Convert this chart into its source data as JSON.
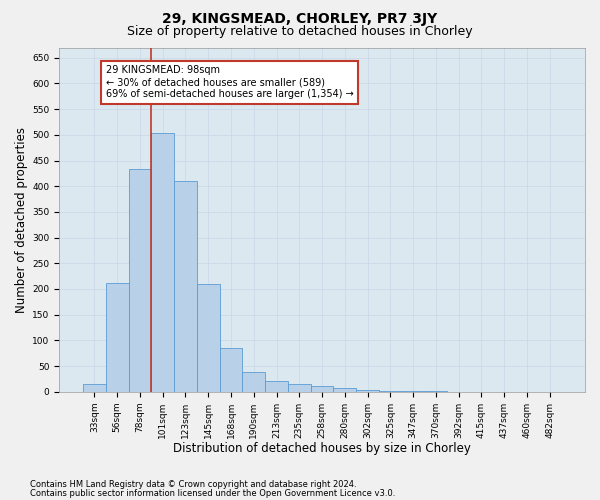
{
  "title": "29, KINGSMEAD, CHORLEY, PR7 3JY",
  "subtitle": "Size of property relative to detached houses in Chorley",
  "xlabel": "Distribution of detached houses by size in Chorley",
  "ylabel": "Number of detached properties",
  "footnote1": "Contains HM Land Registry data © Crown copyright and database right 2024.",
  "footnote2": "Contains public sector information licensed under the Open Government Licence v3.0.",
  "categories": [
    "33sqm",
    "56sqm",
    "78sqm",
    "101sqm",
    "123sqm",
    "145sqm",
    "168sqm",
    "190sqm",
    "213sqm",
    "235sqm",
    "258sqm",
    "280sqm",
    "302sqm",
    "325sqm",
    "347sqm",
    "370sqm",
    "392sqm",
    "415sqm",
    "437sqm",
    "460sqm",
    "482sqm"
  ],
  "bar_values": [
    15,
    212,
    434,
    503,
    410,
    210,
    85,
    38,
    20,
    15,
    12,
    7,
    4,
    2,
    1,
    1,
    0,
    0,
    0,
    0,
    0
  ],
  "bar_color": "#b8d0e8",
  "bar_edgecolor": "#5b9bd5",
  "bar_linewidth": 0.6,
  "vline_pos": 2.5,
  "vline_color": "#c0392b",
  "vline_linewidth": 1.2,
  "annotation_text": "29 KINGSMEAD: 98sqm\n← 30% of detached houses are smaller (589)\n69% of semi-detached houses are larger (1,354) →",
  "annotation_box_color": "#ffffff",
  "annotation_box_edgecolor": "#c0392b",
  "ylim": [
    0,
    670
  ],
  "yticks": [
    0,
    50,
    100,
    150,
    200,
    250,
    300,
    350,
    400,
    450,
    500,
    550,
    600,
    650
  ],
  "grid_color": "#c8d8e8",
  "bg_color": "#dce8f0",
  "fig_color": "#f0f0f0",
  "title_fontsize": 10,
  "subtitle_fontsize": 9,
  "tick_fontsize": 6.5,
  "label_fontsize": 8.5,
  "footnote_fontsize": 6
}
